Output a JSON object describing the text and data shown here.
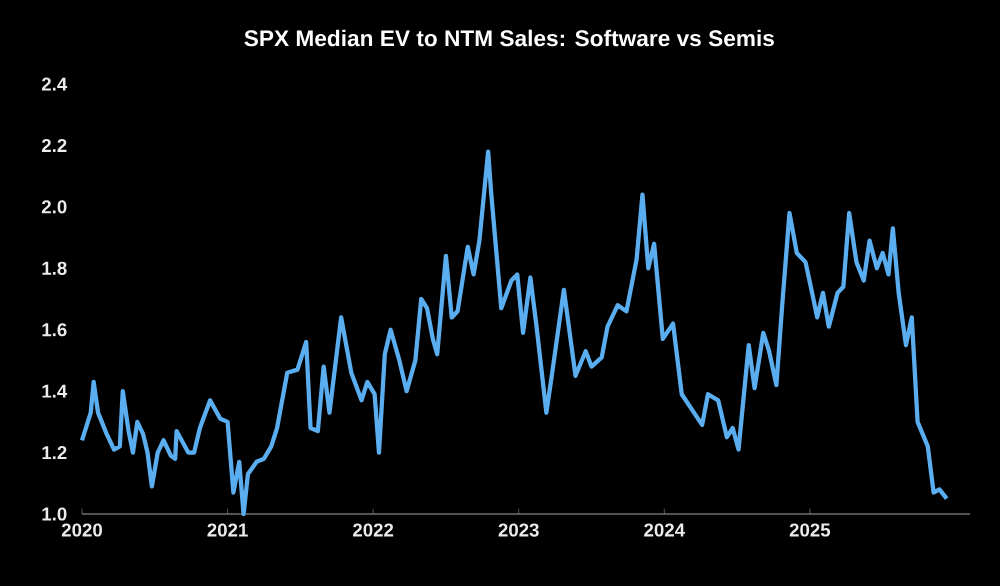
{
  "chart_data": {
    "type": "line",
    "title": "SPX Median EV to NTM Sales: Software vs Semis",
    "x": [
      2020.0,
      2020.06,
      2020.08,
      2020.11,
      2020.17,
      2020.22,
      2020.26,
      2020.28,
      2020.32,
      2020.35,
      2020.38,
      2020.42,
      2020.45,
      2020.48,
      2020.52,
      2020.56,
      2020.61,
      2020.64,
      2020.65,
      2020.73,
      2020.77,
      2020.81,
      2020.88,
      2020.95,
      2021.0,
      2021.04,
      2021.08,
      2021.11,
      2021.14,
      2021.2,
      2021.25,
      2021.3,
      2021.34,
      2021.41,
      2021.48,
      2021.54,
      2021.57,
      2021.62,
      2021.66,
      2021.7,
      2021.78,
      2021.85,
      2021.92,
      2021.96,
      2022.01,
      2022.04,
      2022.08,
      2022.12,
      2022.18,
      2022.23,
      2022.29,
      2022.33,
      2022.37,
      2022.41,
      2022.44,
      2022.5,
      2022.54,
      2022.58,
      2022.65,
      2022.69,
      2022.73,
      2022.79,
      2022.81,
      2022.88,
      2022.95,
      2022.99,
      2023.03,
      2023.08,
      2023.12,
      2023.19,
      2023.23,
      2023.31,
      2023.39,
      2023.46,
      2023.5,
      2023.57,
      2023.61,
      2023.68,
      2023.74,
      2023.81,
      2023.85,
      2023.89,
      2023.93,
      2023.99,
      2024.06,
      2024.12,
      2024.19,
      2024.26,
      2024.3,
      2024.37,
      2024.43,
      2024.47,
      2024.51,
      2024.58,
      2024.62,
      2024.68,
      2024.72,
      2024.77,
      2024.81,
      2024.86,
      2024.91,
      2024.97,
      2025.02,
      2025.05,
      2025.09,
      2025.13,
      2025.19,
      2025.23,
      2025.27,
      2025.32,
      2025.37,
      2025.41,
      2025.46,
      2025.5,
      2025.54,
      2025.57,
      2025.61,
      2025.66,
      2025.7,
      2025.74,
      2025.81,
      2025.85,
      2025.89,
      2025.94
    ],
    "series": [
      {
        "color": "#5aaef0",
        "values": [
          1.24,
          1.33,
          1.43,
          1.33,
          1.26,
          1.21,
          1.22,
          1.4,
          1.27,
          1.2,
          1.3,
          1.26,
          1.2,
          1.09,
          1.2,
          1.24,
          1.19,
          1.18,
          1.27,
          1.2,
          1.2,
          1.28,
          1.37,
          1.31,
          1.3,
          1.07,
          1.17,
          1.0,
          1.13,
          1.17,
          1.18,
          1.22,
          1.28,
          1.46,
          1.47,
          1.56,
          1.28,
          1.27,
          1.48,
          1.33,
          1.64,
          1.46,
          1.37,
          1.43,
          1.39,
          1.2,
          1.52,
          1.6,
          1.5,
          1.4,
          1.5,
          1.7,
          1.67,
          1.57,
          1.52,
          1.84,
          1.64,
          1.66,
          1.87,
          1.78,
          1.89,
          2.18,
          2.05,
          1.67,
          1.76,
          1.78,
          1.59,
          1.77,
          1.62,
          1.33,
          1.46,
          1.73,
          1.45,
          1.53,
          1.48,
          1.51,
          1.61,
          1.68,
          1.66,
          1.83,
          2.04,
          1.8,
          1.88,
          1.57,
          1.62,
          1.39,
          1.34,
          1.29,
          1.39,
          1.37,
          1.25,
          1.28,
          1.21,
          1.55,
          1.41,
          1.59,
          1.53,
          1.42,
          1.68,
          1.98,
          1.85,
          1.82,
          1.71,
          1.64,
          1.72,
          1.61,
          1.72,
          1.74,
          1.98,
          1.82,
          1.76,
          1.89,
          1.8,
          1.85,
          1.78,
          1.93,
          1.72,
          1.55,
          1.64,
          1.3,
          1.22,
          1.07,
          1.08,
          1.05
        ]
      }
    ],
    "xlim": [
      2020,
      2026.1
    ],
    "xticks": [
      2020,
      2021,
      2022,
      2023,
      2024,
      2025
    ],
    "ylim": [
      1.0,
      2.4
    ],
    "yticks": [
      {
        "value": 1.0,
        "label": "1.0"
      },
      {
        "value": 1.2,
        "label": "1.2"
      },
      {
        "value": 1.4,
        "label": "1.4"
      },
      {
        "value": 1.6,
        "label": "1.6"
      },
      {
        "value": 1.8,
        "label": "1.8"
      },
      {
        "value": 2.0,
        "label": "2.0"
      },
      {
        "value": 2.2,
        "label": "2.2"
      },
      {
        "value": 2.4,
        "label": "2.4"
      }
    ],
    "grid": false,
    "marker": "none",
    "line_style": "solid"
  }
}
